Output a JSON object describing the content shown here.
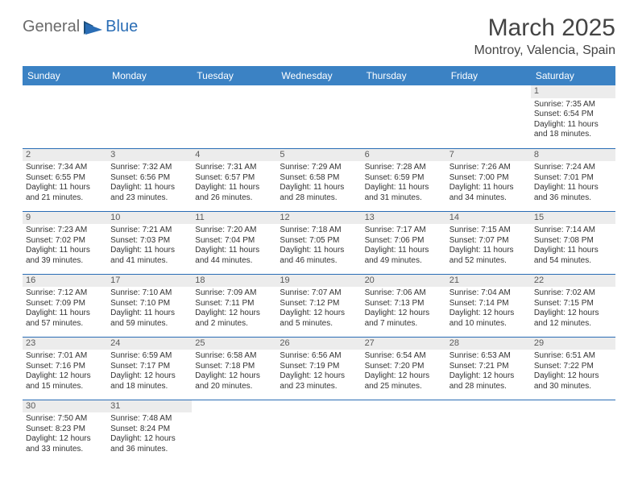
{
  "logo": {
    "text1": "General",
    "text2": "Blue"
  },
  "title": "March 2025",
  "location": "Montroy, Valencia, Spain",
  "weekdays": [
    "Sunday",
    "Monday",
    "Tuesday",
    "Wednesday",
    "Thursday",
    "Friday",
    "Saturday"
  ],
  "colors": {
    "header_bg": "#3b82c4",
    "header_text": "#ffffff",
    "border": "#2a6db5",
    "daynum_bg": "#ececec",
    "logo_blue": "#2a6db5",
    "logo_gray": "#6b6b6b"
  },
  "weeks": [
    [
      null,
      null,
      null,
      null,
      null,
      null,
      {
        "n": "1",
        "sr": "Sunrise: 7:35 AM",
        "ss": "Sunset: 6:54 PM",
        "dl1": "Daylight: 11 hours",
        "dl2": "and 18 minutes."
      }
    ],
    [
      {
        "n": "2",
        "sr": "Sunrise: 7:34 AM",
        "ss": "Sunset: 6:55 PM",
        "dl1": "Daylight: 11 hours",
        "dl2": "and 21 minutes."
      },
      {
        "n": "3",
        "sr": "Sunrise: 7:32 AM",
        "ss": "Sunset: 6:56 PM",
        "dl1": "Daylight: 11 hours",
        "dl2": "and 23 minutes."
      },
      {
        "n": "4",
        "sr": "Sunrise: 7:31 AM",
        "ss": "Sunset: 6:57 PM",
        "dl1": "Daylight: 11 hours",
        "dl2": "and 26 minutes."
      },
      {
        "n": "5",
        "sr": "Sunrise: 7:29 AM",
        "ss": "Sunset: 6:58 PM",
        "dl1": "Daylight: 11 hours",
        "dl2": "and 28 minutes."
      },
      {
        "n": "6",
        "sr": "Sunrise: 7:28 AM",
        "ss": "Sunset: 6:59 PM",
        "dl1": "Daylight: 11 hours",
        "dl2": "and 31 minutes."
      },
      {
        "n": "7",
        "sr": "Sunrise: 7:26 AM",
        "ss": "Sunset: 7:00 PM",
        "dl1": "Daylight: 11 hours",
        "dl2": "and 34 minutes."
      },
      {
        "n": "8",
        "sr": "Sunrise: 7:24 AM",
        "ss": "Sunset: 7:01 PM",
        "dl1": "Daylight: 11 hours",
        "dl2": "and 36 minutes."
      }
    ],
    [
      {
        "n": "9",
        "sr": "Sunrise: 7:23 AM",
        "ss": "Sunset: 7:02 PM",
        "dl1": "Daylight: 11 hours",
        "dl2": "and 39 minutes."
      },
      {
        "n": "10",
        "sr": "Sunrise: 7:21 AM",
        "ss": "Sunset: 7:03 PM",
        "dl1": "Daylight: 11 hours",
        "dl2": "and 41 minutes."
      },
      {
        "n": "11",
        "sr": "Sunrise: 7:20 AM",
        "ss": "Sunset: 7:04 PM",
        "dl1": "Daylight: 11 hours",
        "dl2": "and 44 minutes."
      },
      {
        "n": "12",
        "sr": "Sunrise: 7:18 AM",
        "ss": "Sunset: 7:05 PM",
        "dl1": "Daylight: 11 hours",
        "dl2": "and 46 minutes."
      },
      {
        "n": "13",
        "sr": "Sunrise: 7:17 AM",
        "ss": "Sunset: 7:06 PM",
        "dl1": "Daylight: 11 hours",
        "dl2": "and 49 minutes."
      },
      {
        "n": "14",
        "sr": "Sunrise: 7:15 AM",
        "ss": "Sunset: 7:07 PM",
        "dl1": "Daylight: 11 hours",
        "dl2": "and 52 minutes."
      },
      {
        "n": "15",
        "sr": "Sunrise: 7:14 AM",
        "ss": "Sunset: 7:08 PM",
        "dl1": "Daylight: 11 hours",
        "dl2": "and 54 minutes."
      }
    ],
    [
      {
        "n": "16",
        "sr": "Sunrise: 7:12 AM",
        "ss": "Sunset: 7:09 PM",
        "dl1": "Daylight: 11 hours",
        "dl2": "and 57 minutes."
      },
      {
        "n": "17",
        "sr": "Sunrise: 7:10 AM",
        "ss": "Sunset: 7:10 PM",
        "dl1": "Daylight: 11 hours",
        "dl2": "and 59 minutes."
      },
      {
        "n": "18",
        "sr": "Sunrise: 7:09 AM",
        "ss": "Sunset: 7:11 PM",
        "dl1": "Daylight: 12 hours",
        "dl2": "and 2 minutes."
      },
      {
        "n": "19",
        "sr": "Sunrise: 7:07 AM",
        "ss": "Sunset: 7:12 PM",
        "dl1": "Daylight: 12 hours",
        "dl2": "and 5 minutes."
      },
      {
        "n": "20",
        "sr": "Sunrise: 7:06 AM",
        "ss": "Sunset: 7:13 PM",
        "dl1": "Daylight: 12 hours",
        "dl2": "and 7 minutes."
      },
      {
        "n": "21",
        "sr": "Sunrise: 7:04 AM",
        "ss": "Sunset: 7:14 PM",
        "dl1": "Daylight: 12 hours",
        "dl2": "and 10 minutes."
      },
      {
        "n": "22",
        "sr": "Sunrise: 7:02 AM",
        "ss": "Sunset: 7:15 PM",
        "dl1": "Daylight: 12 hours",
        "dl2": "and 12 minutes."
      }
    ],
    [
      {
        "n": "23",
        "sr": "Sunrise: 7:01 AM",
        "ss": "Sunset: 7:16 PM",
        "dl1": "Daylight: 12 hours",
        "dl2": "and 15 minutes."
      },
      {
        "n": "24",
        "sr": "Sunrise: 6:59 AM",
        "ss": "Sunset: 7:17 PM",
        "dl1": "Daylight: 12 hours",
        "dl2": "and 18 minutes."
      },
      {
        "n": "25",
        "sr": "Sunrise: 6:58 AM",
        "ss": "Sunset: 7:18 PM",
        "dl1": "Daylight: 12 hours",
        "dl2": "and 20 minutes."
      },
      {
        "n": "26",
        "sr": "Sunrise: 6:56 AM",
        "ss": "Sunset: 7:19 PM",
        "dl1": "Daylight: 12 hours",
        "dl2": "and 23 minutes."
      },
      {
        "n": "27",
        "sr": "Sunrise: 6:54 AM",
        "ss": "Sunset: 7:20 PM",
        "dl1": "Daylight: 12 hours",
        "dl2": "and 25 minutes."
      },
      {
        "n": "28",
        "sr": "Sunrise: 6:53 AM",
        "ss": "Sunset: 7:21 PM",
        "dl1": "Daylight: 12 hours",
        "dl2": "and 28 minutes."
      },
      {
        "n": "29",
        "sr": "Sunrise: 6:51 AM",
        "ss": "Sunset: 7:22 PM",
        "dl1": "Daylight: 12 hours",
        "dl2": "and 30 minutes."
      }
    ],
    [
      {
        "n": "30",
        "sr": "Sunrise: 7:50 AM",
        "ss": "Sunset: 8:23 PM",
        "dl1": "Daylight: 12 hours",
        "dl2": "and 33 minutes."
      },
      {
        "n": "31",
        "sr": "Sunrise: 7:48 AM",
        "ss": "Sunset: 8:24 PM",
        "dl1": "Daylight: 12 hours",
        "dl2": "and 36 minutes."
      },
      null,
      null,
      null,
      null,
      null
    ]
  ]
}
